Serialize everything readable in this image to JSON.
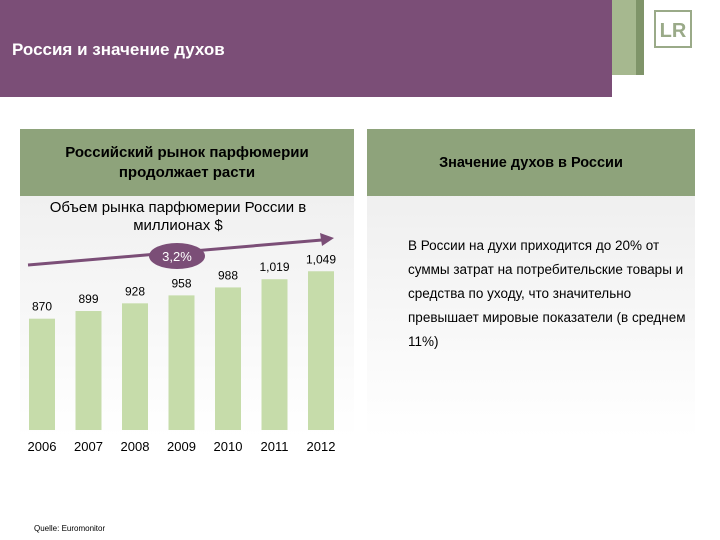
{
  "slide": {
    "title": "Россия и значение духов",
    "source": "Quelle: Euromonitor"
  },
  "left_panel": {
    "header": "Российский рынок парфюмерии продолжает расти"
  },
  "right_panel": {
    "header": "Значение духов в России",
    "body": "В России на духи приходится до 20% от суммы затрат на потребительские товары и средства по уходу, что значительно превышает мировые показатели (в среднем 11%)"
  },
  "colors": {
    "header_bg": "#7b4e77",
    "panel_header": "#8ea37b",
    "bar": "#c6dcaa",
    "arrow": "#7b4e77"
  },
  "icons": {
    "logo": "lr-logo"
  },
  "chart_data": {
    "type": "bar",
    "title": "Объем рынка парфюмерии России в миллионах $",
    "categories": [
      "2006",
      "2007",
      "2008",
      "2009",
      "2010",
      "2011",
      "2012"
    ],
    "values": [
      870,
      899,
      928,
      958,
      988,
      1019,
      1049
    ],
    "value_labels": [
      "870",
      "899",
      "928",
      "958",
      "988",
      "1,019",
      "1,049"
    ],
    "growth_label": "3,2%",
    "xlabel": "",
    "ylabel": ""
  }
}
